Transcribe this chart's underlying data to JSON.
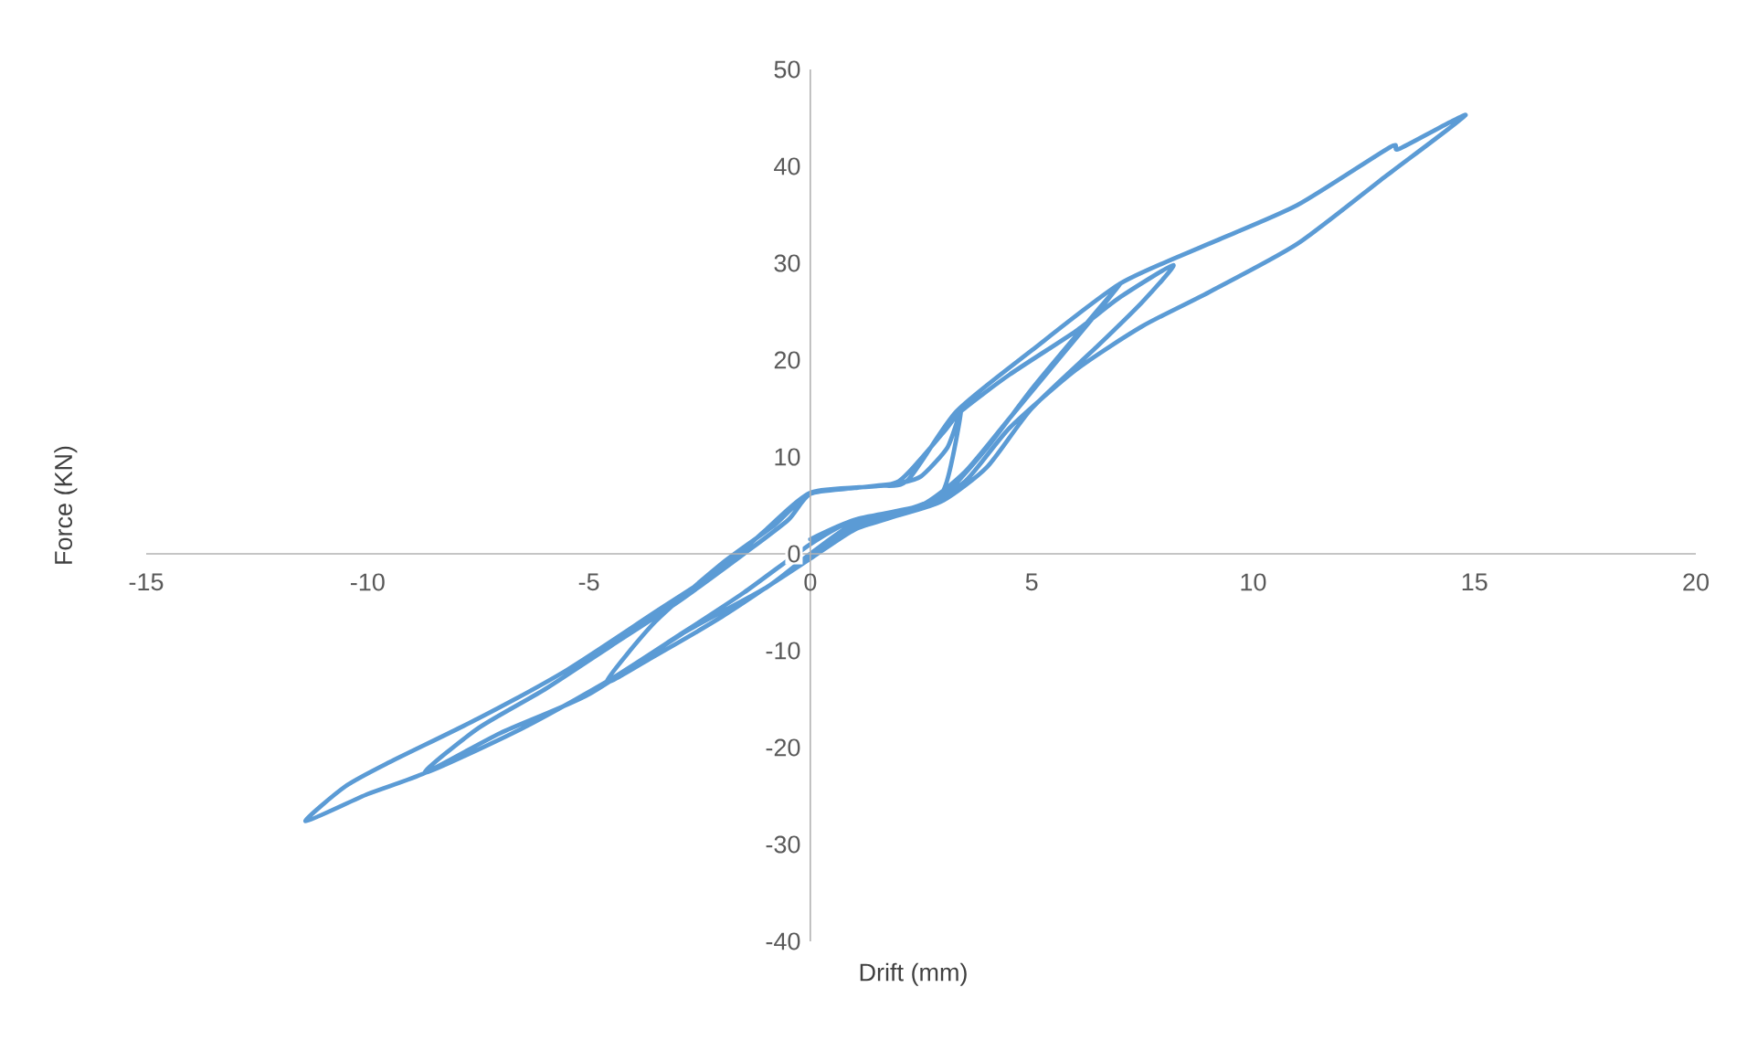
{
  "chart_data": {
    "type": "line",
    "xlabel": "Drift (mm)",
    "ylabel": "Force (KN)",
    "xlim": [
      -15,
      20
    ],
    "ylim": [
      -40,
      50
    ],
    "xticks": [
      -15,
      -10,
      -5,
      0,
      5,
      10,
      15,
      20
    ],
    "yticks": [
      -40,
      -30,
      -20,
      -10,
      0,
      10,
      20,
      30,
      40,
      50
    ],
    "series": [
      {
        "color": "#5b9bd5",
        "x": [
          0,
          1,
          2,
          3,
          3.4,
          3.1,
          2.5,
          2,
          1,
          0,
          -0.8,
          -2,
          -3.5,
          -4.6,
          -3.5,
          -2,
          -1,
          0,
          1,
          2,
          3,
          4,
          5,
          6,
          7,
          6.5,
          5.5,
          4.5,
          3.5,
          2.5,
          1,
          0,
          -1.5,
          -3,
          -4.6,
          -6.5,
          -8.7,
          -7.5,
          -6,
          -4.5,
          -3,
          -1.5,
          -0.5,
          0,
          1,
          2,
          3,
          3.4,
          4.5,
          6,
          7,
          8.2,
          7.5,
          6.5,
          5,
          4,
          3,
          2,
          1,
          0,
          -1,
          -2.8,
          -5,
          -7,
          -8.7,
          -10,
          -11.4,
          -10.5,
          -9.5,
          -7.5,
          -5.5,
          -3.5,
          -2,
          -1,
          0,
          1.5,
          2.2,
          3.3,
          5,
          7,
          9,
          11,
          13.1,
          13.3,
          14.8,
          13,
          11,
          9,
          7.5,
          6,
          4.5,
          3.5,
          2.5,
          1,
          0
        ],
        "values": [
          0,
          3.2,
          4.3,
          6.5,
          14.7,
          11,
          8,
          7.3,
          6.8,
          6.3,
          3,
          -1,
          -7,
          -13.2,
          -10.5,
          -6.5,
          -3.5,
          -0.5,
          2.5,
          4,
          6,
          11,
          17,
          22.5,
          27.9,
          25,
          19.5,
          14,
          8.5,
          5,
          3.5,
          1,
          -4,
          -8.5,
          -13.2,
          -18,
          -22.6,
          -18,
          -14,
          -9.5,
          -5,
          0,
          3.5,
          6.2,
          6.8,
          7.5,
          12.5,
          14.7,
          18.5,
          23,
          26.5,
          29.8,
          26,
          21.5,
          15,
          9,
          5.5,
          4,
          3,
          0,
          -3.5,
          -8,
          -14.5,
          -18.5,
          -22.6,
          -24.8,
          -27.6,
          -24,
          -21.5,
          -17,
          -12,
          -6,
          -1.5,
          2.5,
          6.3,
          7,
          7.6,
          14.7,
          21,
          27.9,
          32,
          36,
          42,
          41.8,
          45.3,
          39,
          32,
          27,
          23.5,
          19,
          13,
          7.5,
          5,
          3.5,
          1.5
        ]
      }
    ]
  }
}
